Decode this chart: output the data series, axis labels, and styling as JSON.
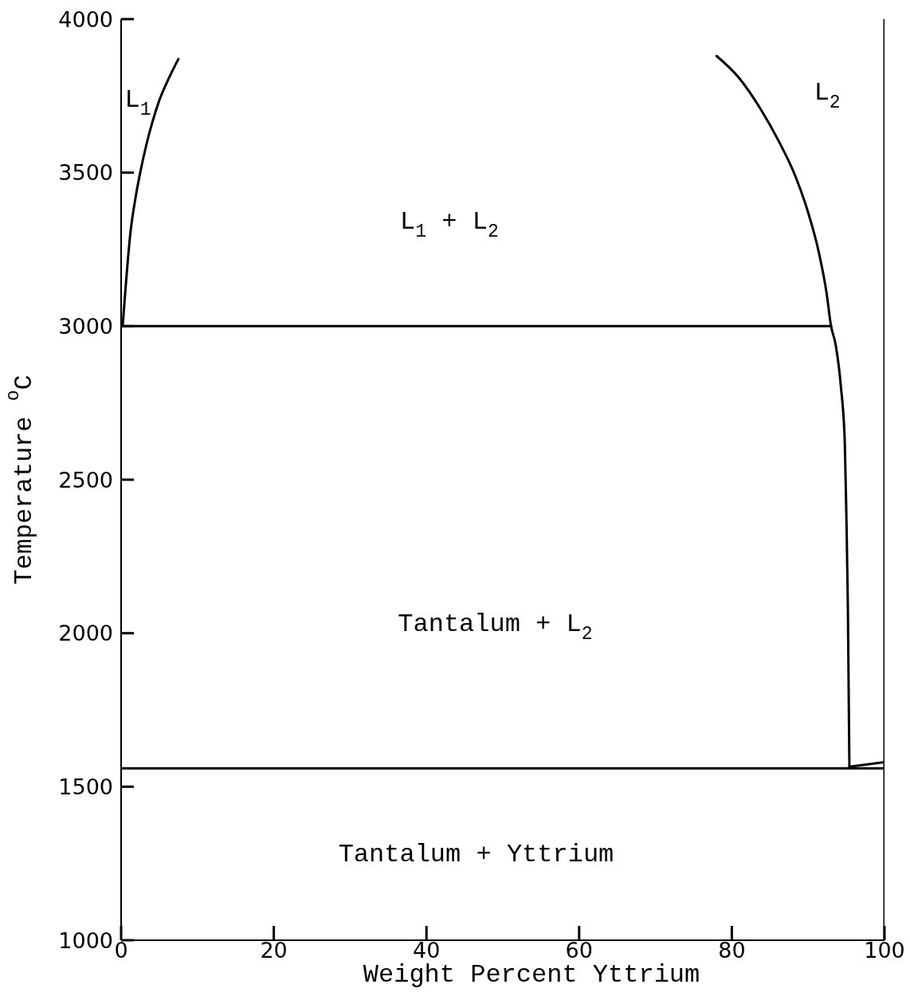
{
  "chart_data": {
    "type": "line",
    "xlabel": "Weight Percent Yttrium",
    "ylabel": "Temperature $^{o}$C",
    "xlim": [
      0,
      100
    ],
    "xticks": [
      0,
      20,
      40,
      60,
      80,
      100
    ],
    "ylim": [
      1000,
      4000
    ],
    "yticks": [
      1000,
      1500,
      2000,
      2500,
      3000,
      3500,
      4000
    ],
    "series": [
      {
        "color": "#000000",
        "x": [
          0.2,
          0.6,
          1.2,
          1.9,
          2.5,
          3.3,
          4.1,
          5.0,
          6.3,
          7.5
        ],
        "values": [
          3000,
          3130,
          3300,
          3420,
          3500,
          3590,
          3665,
          3735,
          3810,
          3870
        ]
      },
      {
        "color": "#000000",
        "x": [
          78.0,
          80.9,
          83.7,
          86.2,
          88.3,
          90.0,
          91.4,
          92.4,
          93.0,
          93.6,
          94.3,
          94.8,
          95.0,
          95.2,
          95.4
        ],
        "values": [
          3880,
          3810,
          3710,
          3600,
          3490,
          3370,
          3240,
          3110,
          3000,
          2940,
          2800,
          2620,
          2390,
          2090,
          1565
        ]
      },
      {
        "color": "#000000",
        "x": [
          0,
          93.0
        ],
        "values": [
          3000,
          3000
        ]
      },
      {
        "color": "#000000",
        "x": [
          0,
          100
        ],
        "values": [
          1560,
          1560
        ]
      },
      {
        "color": "#000000",
        "x": [
          95.4,
          100
        ],
        "values": [
          1565,
          1580
        ]
      },
      {
        "color": "#000000",
        "x": [
          100,
          100
        ],
        "values": [
          1000,
          4000
        ]
      }
    ],
    "annotations": [
      "L$_{1}$",
      "L$_{2}$",
      "L$_{1}$ + L$_{2}$",
      "Tantalum + L$_{2}$",
      "Tantalum + Yttrium"
    ]
  }
}
